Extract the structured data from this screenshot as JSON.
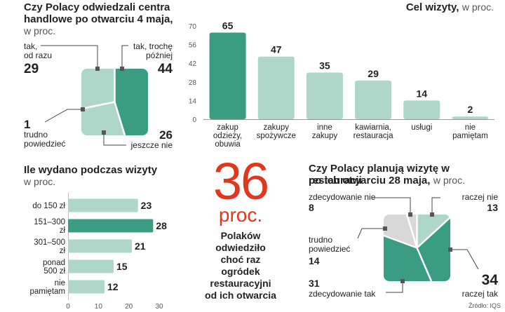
{
  "colors": {
    "light": "#aed7c9",
    "dark": "#3a9c83",
    "grey": "#d8d8d8",
    "accent_red": "#e2371f",
    "text": "#222222",
    "muted": "#555555"
  },
  "mall": {
    "title_line1": "Czy Polacy odwiedzali centra",
    "title_line2": "handlowe po otwarciu 4 maja,",
    "unit": "w proc.",
    "labels": {
      "tak_od_razu_1": "tak,",
      "tak_od_razu_2": "od razu",
      "tak_troche_1": "tak, trochę",
      "tak_troche_2": "później",
      "trudno_1": "trudno",
      "trudno_2": "powiedzieć",
      "jeszcze_nie": "jeszcze nie"
    },
    "values": {
      "tak_od_razu": "29",
      "tak_troche": "44",
      "trudno": "1",
      "jeszcze_nie": "26"
    }
  },
  "center": {
    "big": "36",
    "unit": "proc.",
    "line1": "Polaków",
    "line2": "odwiedziło",
    "line3": "choć raz",
    "line4": "ogródek",
    "line5": "restauracyjni",
    "line6": "od ich otwarcia"
  },
  "restaurant": {
    "title_line1": "Czy Polacy planują wizytę w restauracji",
    "title_line2": "po ich otwarciu 28 maja,",
    "unit": "w proc.",
    "labels": {
      "zdecydowanie_nie": "zdecydowanie nie",
      "raczej_nie": "raczej nie",
      "trudno_1": "trudno",
      "trudno_2": "powiedzieć",
      "zdecydowanie_tak": "zdecydowanie tak",
      "raczej_tak": "raczej tak"
    },
    "values": {
      "zdecydowanie_nie": "8",
      "raczej_nie": "13",
      "trudno": "14",
      "zdecydowanie_tak": "31",
      "raczej_tak": "34"
    }
  },
  "source": "Źródło: IQS",
  "chart_data": [
    {
      "type": "bar",
      "title": "Cel wizyty,",
      "unit": "w proc.",
      "categories": [
        [
          "zakup",
          "odzieży,",
          "obuwia"
        ],
        [
          "zakupy",
          "spożywcze"
        ],
        [
          "inne",
          "zakupy"
        ],
        [
          "kawiarnia,",
          "restauracja"
        ],
        [
          "usługi"
        ],
        [
          "nie",
          "pamiętam"
        ]
      ],
      "values": [
        65,
        47,
        35,
        29,
        14,
        2
      ],
      "value_labels": [
        "65",
        "47",
        "35",
        "29",
        "14",
        "2"
      ],
      "highlight_index": 0,
      "ylim": [
        0,
        70
      ],
      "yticks": [
        0,
        14,
        28,
        42,
        56,
        70
      ],
      "ytick_labels": [
        "0",
        "14",
        "28",
        "42",
        "56",
        "70"
      ],
      "grid": false
    },
    {
      "type": "bar",
      "orientation": "horizontal",
      "title": "Ile wydano podczas wizyty",
      "unit": "w proc.",
      "categories": [
        [
          "do 150 zł"
        ],
        [
          "151–300",
          "zł"
        ],
        [
          "301–500",
          "zł"
        ],
        [
          "ponad",
          "500 zł"
        ],
        [
          "nie",
          "pamiętam"
        ]
      ],
      "values": [
        23,
        28,
        21,
        15,
        12
      ],
      "value_labels": [
        "23",
        "28",
        "21",
        "15",
        "12"
      ],
      "highlight_index": 1,
      "xlim": [
        0,
        30
      ],
      "xticks": [
        0,
        10,
        20,
        30
      ],
      "xtick_labels": [
        "0",
        "10",
        "20",
        "30"
      ],
      "grid": false
    },
    {
      "type": "pie",
      "title": "Czy Polacy odwiedzali centra handlowe po otwarciu 4 maja,",
      "unit": "w proc.",
      "shape": "rounded-square",
      "slices": [
        {
          "label": "tak, od razu",
          "value": 29,
          "color": "#aed7c9"
        },
        {
          "label": "tak, trochę później",
          "value": 44,
          "color": "#3a9c83"
        },
        {
          "label": "jeszcze nie",
          "value": 26,
          "color": "#aed7c9"
        },
        {
          "label": "trudno powiedzieć",
          "value": 1,
          "color": "#d8d8d8"
        }
      ]
    },
    {
      "type": "pie",
      "title": "Czy Polacy planują wizytę w restauracji po ich otwarciu 28 maja,",
      "unit": "w proc.",
      "shape": "rounded-square",
      "slices": [
        {
          "label": "zdecydowanie tak",
          "value": 31,
          "color": "#3a9c83"
        },
        {
          "label": "raczej tak",
          "value": 34,
          "color": "#3a9c83"
        },
        {
          "label": "raczej nie",
          "value": 13,
          "color": "#aed7c9"
        },
        {
          "label": "zdecydowanie nie",
          "value": 8,
          "color": "#d8d8d8"
        },
        {
          "label": "trudno powiedzieć",
          "value": 14,
          "color": "#d8d8d8"
        }
      ]
    }
  ]
}
